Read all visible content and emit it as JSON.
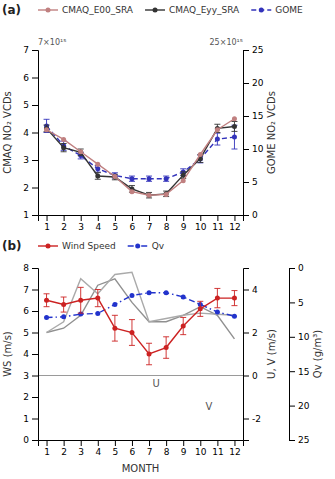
{
  "chart_data": [
    {
      "type": "line",
      "title": "(a)",
      "x": [
        1,
        2,
        3,
        4,
        5,
        6,
        7,
        8,
        9,
        10,
        11,
        12
      ],
      "xlim": [
        0.5,
        12.5
      ],
      "xticks": [
        1,
        2,
        3,
        4,
        5,
        6,
        7,
        8,
        9,
        10,
        11,
        12
      ],
      "ylabel": "CMAQ NO₂ VCDs",
      "ylim": [
        1.0,
        7.0
      ],
      "yticks": [
        1,
        2,
        3,
        4,
        5,
        6,
        7
      ],
      "y2label": "GOME NO₂ VCDs",
      "y2lim": [
        0.0,
        25.0
      ],
      "y2ticks": [
        0,
        5,
        10,
        15,
        20,
        25
      ],
      "annotations": [
        {
          "text": "7×10¹⁵",
          "axis": "y"
        },
        {
          "text": "25×10¹⁵",
          "axis": "y2"
        }
      ],
      "grid": false,
      "legend": "top",
      "series": [
        {
          "name": "CMAQ_E00_SRA",
          "color": "#c08080",
          "marker": "circle",
          "line_style": "solid",
          "values": [
            4.1,
            3.75,
            3.3,
            2.85,
            2.4,
            1.85,
            1.72,
            1.75,
            2.25,
            3.2,
            4.1,
            4.5
          ]
        },
        {
          "name": "CMAQ_Eyy_SRA",
          "color": "#333333",
          "marker": "circle",
          "line_style": "solid",
          "values": [
            4.15,
            3.45,
            3.28,
            2.42,
            2.38,
            1.95,
            1.72,
            1.77,
            2.45,
            3.05,
            4.15,
            4.22
          ],
          "errors": [
            0.12,
            0.15,
            0.12,
            0.12,
            0.1,
            0.12,
            0.1,
            0.1,
            0.12,
            0.14,
            0.15,
            0.18
          ]
        },
        {
          "name": "GOME",
          "color": "#3333bb",
          "marker": "circle",
          "line_style": "dashed",
          "axis": "y2",
          "values": [
            13.5,
            10.5,
            9.0,
            7.0,
            6.0,
            5.5,
            5.5,
            5.5,
            6.5,
            8.5,
            11.5,
            11.8
          ],
          "errors": [
            1.0,
            0.7,
            0.5,
            0.5,
            0.4,
            0.4,
            0.4,
            0.4,
            0.5,
            0.6,
            0.9,
            1.8
          ]
        }
      ]
    },
    {
      "type": "line",
      "title": "(b)",
      "x": [
        1,
        2,
        3,
        4,
        5,
        6,
        7,
        8,
        9,
        10,
        11,
        12
      ],
      "xlim": [
        0.5,
        12.5
      ],
      "xticks": [
        1,
        2,
        3,
        4,
        5,
        6,
        7,
        8,
        9,
        10,
        11,
        12
      ],
      "xlabel": "MONTH",
      "ylabel": "WS (m/s)",
      "ylim": [
        0.0,
        8.0
      ],
      "yticks": [
        0,
        1,
        2,
        3,
        4,
        5,
        6,
        7,
        8
      ],
      "y2label": "U, V (m/s)",
      "y2lim": [
        -3.0,
        5.0
      ],
      "y2ticks": [
        -2,
        0,
        2,
        4
      ],
      "y3label": "Qv (g/m³)",
      "y3lim": [
        25.0,
        0.0
      ],
      "y3ticks": [
        0,
        5,
        10,
        15,
        20,
        25
      ],
      "hlines": [
        {
          "value": 0.0,
          "axis": "y2"
        }
      ],
      "annotations": [
        {
          "text": "U",
          "x": 7.2,
          "y": -0.55,
          "axis": "y2"
        },
        {
          "text": "V",
          "x": 10.3,
          "y": -1.6,
          "axis": "y2"
        }
      ],
      "grid": false,
      "legend": "top",
      "series": [
        {
          "name": "Wind Speed",
          "color": "#cc2222",
          "marker": "circle",
          "line_style": "solid",
          "values": [
            6.5,
            6.3,
            6.5,
            6.6,
            5.2,
            5.0,
            4.0,
            4.3,
            5.3,
            6.1,
            6.6,
            6.6
          ],
          "errors": [
            0.3,
            0.35,
            0.6,
            0.4,
            0.6,
            0.6,
            0.5,
            0.5,
            0.4,
            0.35,
            0.45,
            0.35
          ]
        },
        {
          "name": "Qv",
          "color": "#2233cc",
          "marker": "circle",
          "line_style": "dashdot",
          "axis": "y3",
          "values": [
            7.2,
            7.1,
            6.7,
            6.6,
            5.3,
            4.0,
            3.6,
            3.6,
            4.2,
            5.3,
            6.4,
            7.0
          ]
        },
        {
          "color": "#aaaaaa",
          "marker": "none",
          "line_style": "solid",
          "axis": "y2",
          "values": [
            2.0,
            2.5,
            4.5,
            3.8,
            4.7,
            4.8,
            2.5,
            2.65,
            2.8,
            2.9,
            2.85,
            2.8
          ]
        },
        {
          "color": "#909090",
          "marker": "none",
          "line_style": "solid",
          "axis": "y2",
          "values": [
            2.0,
            2.2,
            2.8,
            4.2,
            4.5,
            3.4,
            2.5,
            2.5,
            2.8,
            3.2,
            2.8,
            1.7
          ]
        }
      ]
    }
  ]
}
